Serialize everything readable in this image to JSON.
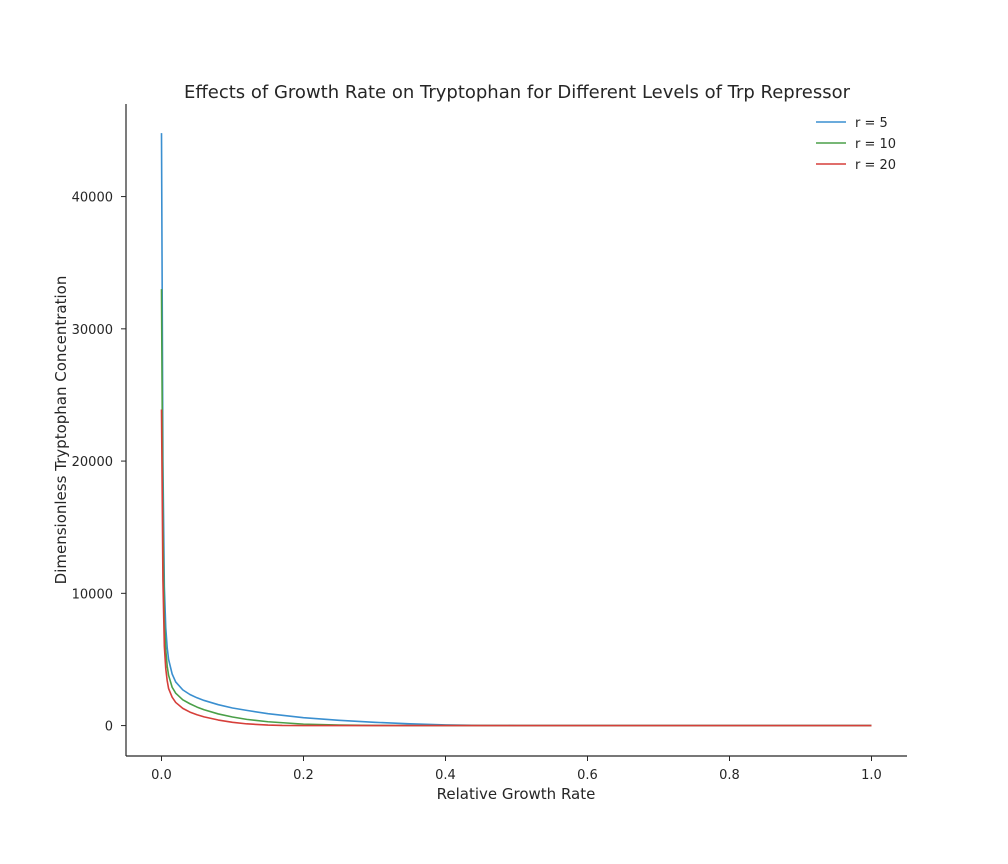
{
  "chart_data": {
    "type": "line",
    "title": "Effects of Growth Rate on Tryptophan for Different Levels of Trp Repressor",
    "xlabel": "Relative Growth Rate",
    "ylabel": "Dimensionless Tryptophan Concentration",
    "xlim": [
      -0.05,
      1.05
    ],
    "ylim": [
      -2300,
      47000
    ],
    "xticks": [
      0.0,
      0.2,
      0.4,
      0.6,
      0.8,
      1.0
    ],
    "xtick_labels": [
      "0.0",
      "0.2",
      "0.4",
      "0.6",
      "0.8",
      "1.0"
    ],
    "yticks": [
      0,
      10000,
      20000,
      30000,
      40000
    ],
    "ytick_labels": [
      "0",
      "10000",
      "20000",
      "30000",
      "40000"
    ],
    "grid": false,
    "legend_position": "top-right",
    "series": [
      {
        "name": "r = 5",
        "color": "#3a8fd0",
        "x": [
          0.0,
          0.002,
          0.004,
          0.006,
          0.008,
          0.01,
          0.015,
          0.02,
          0.03,
          0.04,
          0.05,
          0.06,
          0.08,
          0.1,
          0.12,
          0.15,
          0.2,
          0.25,
          0.3,
          0.35,
          0.4,
          0.45,
          0.5,
          0.6,
          0.7,
          0.8,
          0.9,
          1.0
        ],
        "y": [
          44800,
          20000,
          10500,
          7400,
          5900,
          5000,
          3900,
          3300,
          2700,
          2350,
          2100,
          1900,
          1580,
          1330,
          1150,
          900,
          600,
          400,
          250,
          130,
          50,
          15,
          5,
          2,
          1,
          1,
          0,
          0
        ]
      },
      {
        "name": "r = 10",
        "color": "#4a9f48",
        "x": [
          0.0,
          0.002,
          0.004,
          0.006,
          0.008,
          0.01,
          0.015,
          0.02,
          0.03,
          0.04,
          0.05,
          0.06,
          0.08,
          0.1,
          0.12,
          0.15,
          0.2,
          0.25,
          0.3,
          0.35,
          0.4,
          0.45,
          0.5,
          0.6,
          0.7,
          0.8,
          0.9,
          1.0
        ],
        "y": [
          33000,
          15000,
          8000,
          5700,
          4500,
          3800,
          2900,
          2450,
          1950,
          1650,
          1400,
          1200,
          880,
          650,
          470,
          290,
          110,
          40,
          10,
          3,
          1,
          0,
          0,
          0,
          0,
          0,
          0,
          0
        ]
      },
      {
        "name": " r = 20",
        "color": "#d63f3a",
        "x": [
          0.0,
          0.002,
          0.004,
          0.006,
          0.008,
          0.01,
          0.015,
          0.02,
          0.03,
          0.04,
          0.05,
          0.06,
          0.08,
          0.1,
          0.12,
          0.15,
          0.17,
          0.2,
          0.25,
          0.3,
          0.4,
          0.5,
          0.6,
          0.7,
          0.8,
          0.9,
          1.0
        ],
        "y": [
          23900,
          11000,
          6000,
          4300,
          3400,
          2800,
          2150,
          1750,
          1300,
          1020,
          820,
          660,
          420,
          250,
          130,
          40,
          10,
          2,
          0,
          0,
          0,
          0,
          0,
          0,
          0,
          0,
          0
        ]
      }
    ]
  }
}
